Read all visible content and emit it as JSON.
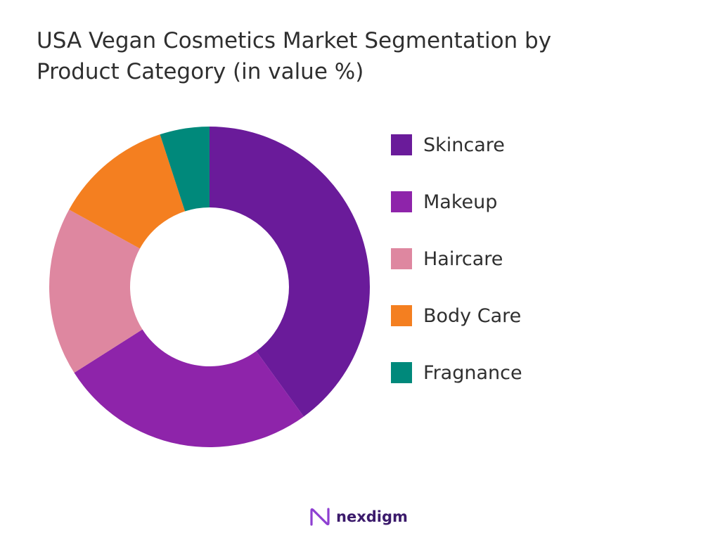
{
  "title_line1": "USA Vegan Cosmetics Market Segmentation by",
  "title_line2": "Product Category (in value %)",
  "chart_data": {
    "type": "pie",
    "title": "USA Vegan Cosmetics Market Segmentation by Product Category (in value %)",
    "categories": [
      "Skincare",
      "Makeup",
      "Haircare",
      "Body Care",
      "Fragnance"
    ],
    "values": [
      40,
      26,
      17,
      12,
      5
    ],
    "colors": [
      "#6a1b9a",
      "#8e24aa",
      "#de87a0",
      "#f47f20",
      "#00897b"
    ],
    "donut": true,
    "legend_position": "right"
  },
  "brand": {
    "name": "nexdigm",
    "logo_icon": "nexdigm-logo-icon"
  }
}
